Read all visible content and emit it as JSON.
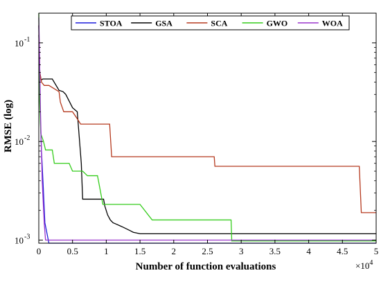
{
  "chart_data": {
    "type": "line",
    "title": "",
    "xlabel": "Number of function evaluations",
    "ylabel": "RMSE (log)",
    "x_exponent_label": "×10",
    "x_exponent_power": "4",
    "xscale": "linear",
    "yscale": "log",
    "xlim": [
      0,
      50000
    ],
    "ylim": [
      0.00093,
      0.2
    ],
    "grid": false,
    "legend_position": "top",
    "x_tick_values": [
      0,
      5000,
      10000,
      15000,
      20000,
      25000,
      30000,
      35000,
      40000,
      45000,
      50000
    ],
    "x_tick_labels": [
      "0",
      "0.5",
      "1",
      "1.5",
      "2",
      "2.5",
      "3",
      "3.5",
      "4",
      "4.5",
      "5"
    ],
    "y_tick_values": [
      0.001,
      0.01,
      0.1
    ],
    "y_tick_labels_base": [
      "10",
      "10",
      "10"
    ],
    "y_tick_labels_exp": [
      "-3",
      "-2",
      "-1"
    ],
    "series": [
      {
        "name": "STOA",
        "color": "#1a1adb",
        "x": [
          0,
          80,
          200,
          400,
          700,
          900,
          1500,
          50000
        ],
        "y": [
          0.15,
          0.06,
          0.02,
          0.008,
          0.003,
          0.0015,
          0.00093,
          0.00093
        ]
      },
      {
        "name": "GSA",
        "color": "#000000",
        "x": [
          0,
          150,
          350,
          600,
          1200,
          2000,
          3000,
          3600,
          4000,
          5000,
          5700,
          6300,
          6500,
          9600,
          9800,
          10200,
          10600,
          11000,
          11500,
          12000,
          12500,
          13000,
          13500,
          14000,
          14500,
          15000,
          16000,
          18000,
          20000,
          25000,
          30000,
          35000,
          40000,
          45000,
          50000
        ],
        "y": [
          0.12,
          0.05,
          0.042,
          0.043,
          0.043,
          0.043,
          0.033,
          0.032,
          0.03,
          0.022,
          0.02,
          0.006,
          0.0026,
          0.0026,
          0.0022,
          0.0018,
          0.0016,
          0.0015,
          0.00145,
          0.0014,
          0.00135,
          0.0013,
          0.00125,
          0.0012,
          0.00118,
          0.00116,
          0.00116,
          0.00116,
          0.00116,
          0.00116,
          0.00116,
          0.00116,
          0.00116,
          0.00116,
          0.00116
        ]
      },
      {
        "name": "SCA",
        "color": "#b5391e",
        "x": [
          0,
          150,
          400,
          800,
          1500,
          3000,
          3200,
          3700,
          5000,
          5700,
          6200,
          10500,
          10800,
          15000,
          20000,
          26000,
          26100,
          40000,
          47500,
          47800,
          50000
        ],
        "y": [
          0.15,
          0.05,
          0.04,
          0.037,
          0.037,
          0.032,
          0.025,
          0.02,
          0.02,
          0.017,
          0.015,
          0.015,
          0.007,
          0.007,
          0.007,
          0.007,
          0.0056,
          0.0056,
          0.0056,
          0.0019,
          0.0019
        ]
      },
      {
        "name": "GWO",
        "color": "#33cc1a",
        "x": [
          0,
          80,
          300,
          700,
          1000,
          2000,
          2300,
          4500,
          5000,
          6500,
          7200,
          8700,
          9500,
          15000,
          16800,
          20000,
          25000,
          28500,
          28600,
          50000
        ],
        "y": [
          0.2,
          0.03,
          0.012,
          0.01,
          0.0082,
          0.0082,
          0.006,
          0.006,
          0.005,
          0.005,
          0.0045,
          0.0045,
          0.0023,
          0.0023,
          0.0016,
          0.0016,
          0.0016,
          0.0016,
          0.00098,
          0.00098
        ]
      },
      {
        "name": "WOA",
        "color": "#9933cc",
        "x": [
          0,
          100,
          250,
          500,
          800,
          1000,
          1200,
          2000,
          50000
        ],
        "y": [
          0.18,
          0.08,
          0.02,
          0.004,
          0.0015,
          0.001,
          0.001,
          0.001,
          0.001
        ]
      }
    ]
  }
}
